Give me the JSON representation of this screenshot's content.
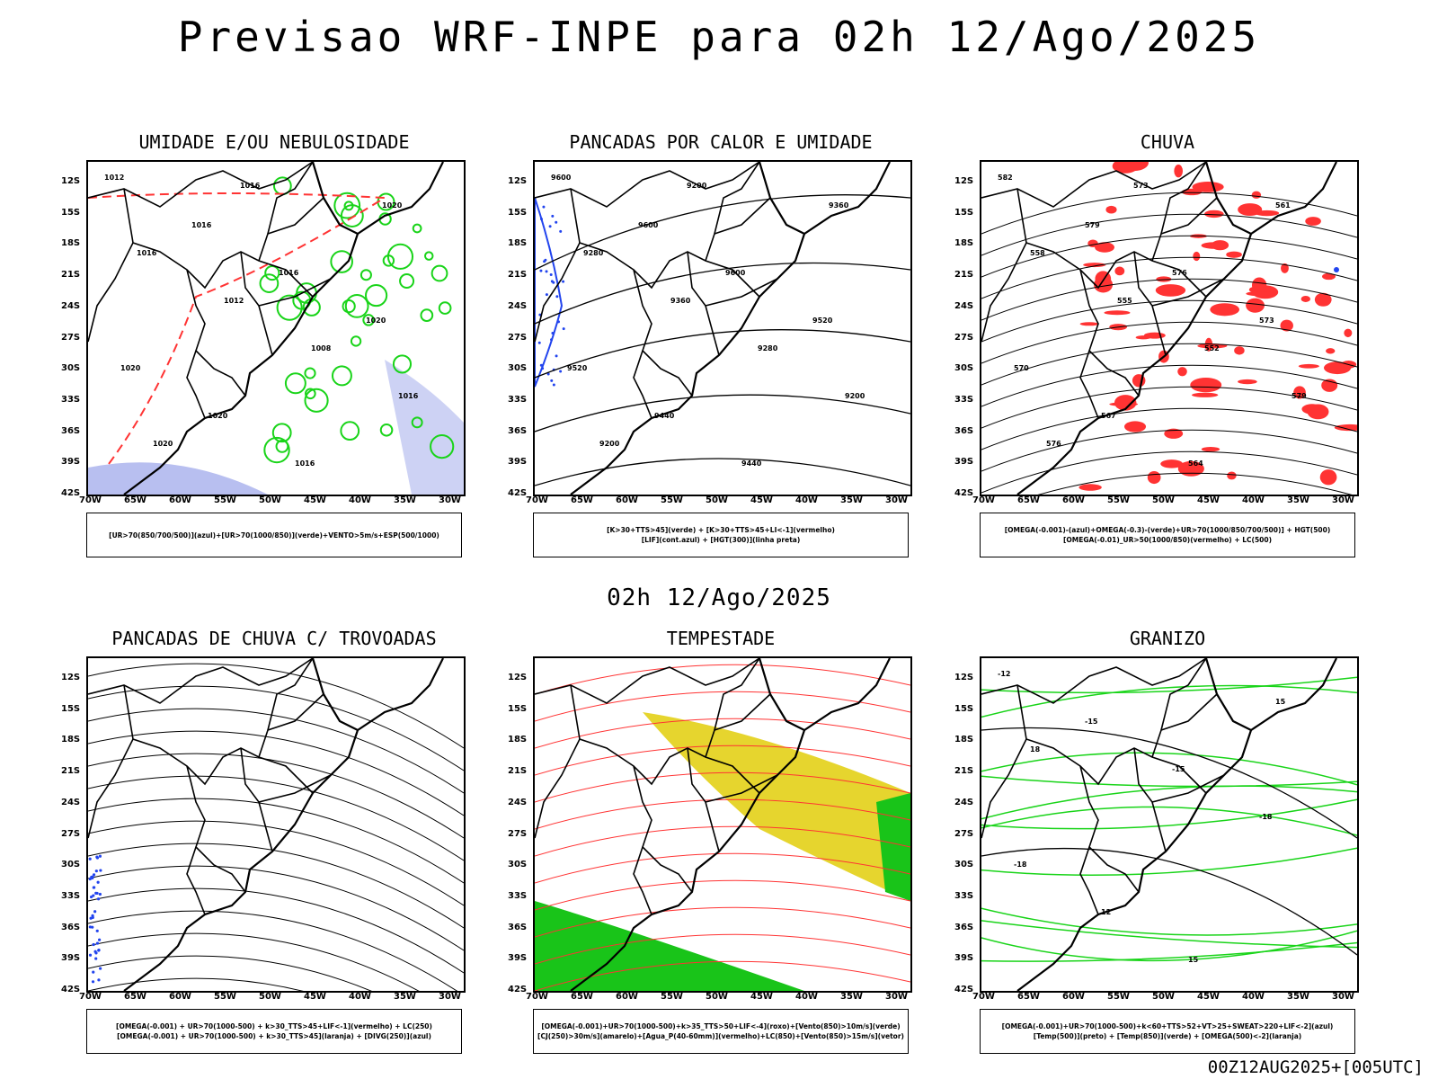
{
  "header": {
    "title": "Previsao WRF-INPE  para 02h 12/Ago/2025",
    "subtitle": "02h 12/Ago/2025",
    "footer": "00Z12AUG2025+[005UTC]"
  },
  "axes": {
    "lat_labels": [
      "12S",
      "15S",
      "18S",
      "21S",
      "24S",
      "27S",
      "30S",
      "33S",
      "36S",
      "39S",
      "42S"
    ],
    "lon_labels": [
      "70W",
      "65W",
      "60W",
      "55W",
      "50W",
      "45W",
      "40W",
      "35W",
      "30W"
    ]
  },
  "panels": [
    {
      "title": "UMIDADE E/OU NEBULOSIDADE",
      "legend": [
        "[UR>70(850/700/500)](azul)+[UR>70(1000/850)](verde)+VENTO>5m/s+ESP(500/1000)"
      ],
      "contour_labels": [
        "1012",
        "1016",
        "1016",
        "1020",
        "1020",
        "1020",
        "1016",
        "1020",
        "1016",
        "1012",
        "1008",
        "1016",
        "1020",
        "1016"
      ],
      "colors": {
        "humid_upper": "#b8bff0",
        "humid_low": "#19d419",
        "thickness": "#ff3333"
      }
    },
    {
      "title": "PANCADAS POR CALOR E UMIDADE",
      "legend": [
        "[K>30+TTS>45](verde) + [K>30+TTS>45+LI<-1](vermelho)",
        "[LIF](cont.azul) + [HGT(300)](linha preta)"
      ],
      "contour_labels": [
        "9600",
        "9600",
        "9600",
        "9520",
        "9520",
        "9440",
        "9440",
        "9360",
        "9280",
        "9360",
        "9280",
        "9200",
        "9200",
        "9200"
      ],
      "colors": {
        "lif": "#2244ee",
        "hgt": "#000000"
      }
    },
    {
      "title": "CHUVA",
      "legend": [
        "[OMEGA(-0.001)-(azul)+OMEGA(-0.3)-(verde)+UR>70(1000/850/700/500)] + HGT(500)",
        "[OMEGA(-0.01)_UR>50(1000/850)(vermelho) + LC(500)"
      ],
      "contour_labels": [
        "582",
        "579",
        "576",
        "573",
        "570",
        "567",
        "564",
        "561",
        "558",
        "555",
        "552",
        "579",
        "576",
        "573"
      ],
      "colors": {
        "rain": "#ff3333",
        "omega": "#2244ee"
      }
    },
    {
      "title": "PANCADAS DE CHUVA C/ TROVOADAS",
      "legend": [
        "[OMEGA(-0.001) + UR>70(1000-500) + k>30_TTS>45+LIF<-1](vermelho) + LC(250)",
        "[OMEGA(-0.001) + UR>70(1000-500) + k>30_TTS>45](laranja) + [DIVG(250)](azul)"
      ],
      "contour_labels": [],
      "colors": {
        "divg": "#2244ee"
      }
    },
    {
      "title": "TEMPESTADE",
      "legend": [
        "[OMEGA(-0.001)+UR>70(1000-500)+k>35_TTS>50+LIF<-4](roxo)+[Vento(850)>10m/s](verde)",
        "[CJ(250)>30m/s](amarelo)+[Agua_P(40-60mm)](vermelho)+LC(850)+[Vento(850)>15m/s](vetor)"
      ],
      "contour_labels": [],
      "colors": {
        "jet": "#e6d52e",
        "wind": "#19c419",
        "water": "#ff3333"
      }
    },
    {
      "title": "GRANIZO",
      "legend": [
        "[OMEGA(-0.001)+UR>70(1000-500)+k<60+TTS>52+VT>25+SWEAT>220+LIF<-2](azul)",
        "[Temp(500)](preto) + [Temp(850)](verde) + [OMEGA(500)<-2](laranja)"
      ],
      "contour_labels": [
        "-12",
        "-15",
        "-15",
        "-18",
        "-18",
        "12",
        "15",
        "15",
        "18"
      ],
      "colors": {
        "t850": "#19d419",
        "t500": "#000000"
      }
    }
  ]
}
